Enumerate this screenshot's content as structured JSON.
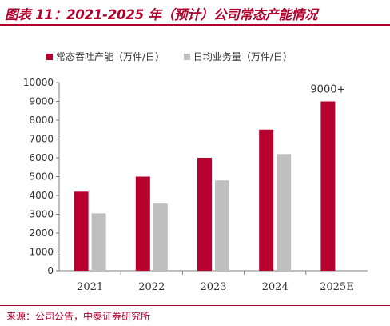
{
  "header": {
    "title": "图表 11：2021-2025 年（预计）公司常态产能情况"
  },
  "footer": {
    "source": "来源：公司公告，中泰证券研究所"
  },
  "colors": {
    "accent": "#b0002e",
    "series_capacity": "#b8002f",
    "series_volume": "#bfbfbf",
    "axis": "#7f7f7f"
  },
  "chart_data": {
    "type": "bar",
    "categories": [
      "2021",
      "2022",
      "2023",
      "2024",
      "2025E"
    ],
    "series": [
      {
        "name": "常态吞吐产能（万件/日）",
        "values": [
          4200,
          5000,
          6000,
          7500,
          9000
        ]
      },
      {
        "name": "日均业务量（万件/日）",
        "values": [
          3050,
          3570,
          4800,
          6200,
          null
        ]
      }
    ],
    "ylim": [
      0,
      10000
    ],
    "yticks": [
      "0",
      "1000",
      "2000",
      "3000",
      "4000",
      "5000",
      "6000",
      "7000",
      "8000",
      "9000",
      "10000"
    ],
    "annotations": [
      {
        "category": "2025E",
        "text": "9000+"
      }
    ],
    "grid": false,
    "legend": "top-left"
  }
}
